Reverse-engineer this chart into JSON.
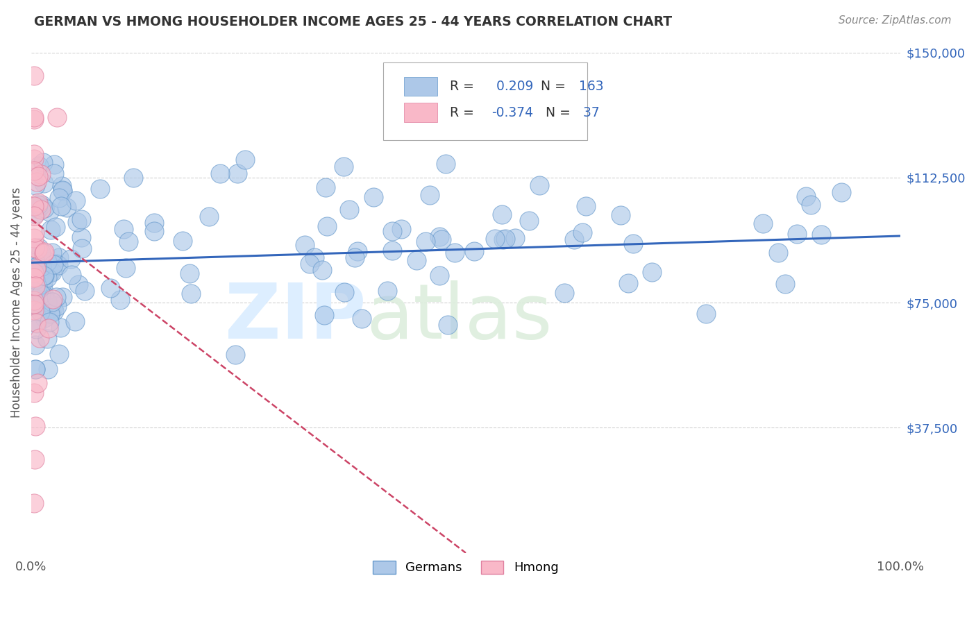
{
  "title": "GERMAN VS HMONG HOUSEHOLDER INCOME AGES 25 - 44 YEARS CORRELATION CHART",
  "source_text": "Source: ZipAtlas.com",
  "ylabel": "Householder Income Ages 25 - 44 years",
  "xlim": [
    0,
    1.0
  ],
  "ylim": [
    0,
    150000
  ],
  "y_tick_labels": [
    "$150,000",
    "$112,500",
    "$75,000",
    "$37,500"
  ],
  "y_ticks": [
    150000,
    112500,
    75000,
    37500
  ],
  "german_R": 0.209,
  "german_N": 163,
  "hmong_R": -0.374,
  "hmong_N": 37,
  "blue_scatter_color": "#adc8e8",
  "blue_edge_color": "#6699cc",
  "pink_scatter_color": "#f9b8c8",
  "pink_edge_color": "#e080a0",
  "blue_line_color": "#3366bb",
  "pink_line_color": "#cc4466",
  "title_color": "#333333",
  "source_color": "#888888",
  "axis_label_color": "#555555",
  "right_tick_color": "#3366bb",
  "legend_text_color": "#333333",
  "legend_value_color": "#3366bb",
  "background_color": "#ffffff",
  "grid_color": "#cccccc",
  "watermark_zip_color": "#e0e8f4",
  "watermark_atlas_color": "#d8e8d0",
  "bottom_legend_label1": "Germans",
  "bottom_legend_label2": "Hmong"
}
